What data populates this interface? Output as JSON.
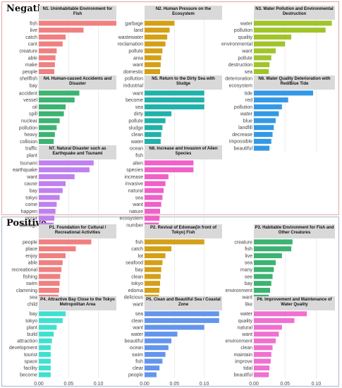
{
  "sections": {
    "negative": "Negative",
    "positive": "Positive"
  },
  "chart_data": [
    {
      "type": "bar",
      "orientation": "horizontal",
      "title": "N1. Uninhabitable Environment for Fish",
      "color": "#f08080",
      "categories": [
        "fish",
        "live",
        "catch",
        "cant",
        "creature",
        "able",
        "make",
        "people",
        "shellfish",
        "bay"
      ],
      "values": [
        0.13,
        0.075,
        0.045,
        0.04,
        0.03,
        0.028,
        0.027,
        0.026,
        0.025,
        0.02
      ],
      "xlim": [
        0,
        0.13
      ],
      "x_ticks": []
    },
    {
      "type": "bar",
      "orientation": "horizontal",
      "title": "N2. Human Pressure on the Ecosystem",
      "color": "#d4a017",
      "categories": [
        "garbage",
        "land",
        "wastewater",
        "reclamation",
        "pollute",
        "area",
        "want",
        "domestic",
        "pollution",
        "industrial"
      ],
      "values": [
        0.05,
        0.042,
        0.038,
        0.035,
        0.03,
        0.028,
        0.027,
        0.026,
        0.025,
        0.024
      ],
      "xlim": [
        0,
        0.13
      ],
      "x_ticks": []
    },
    {
      "type": "bar",
      "orientation": "horizontal",
      "title": "N3. Water Pollution and Environmental Destruction",
      "color": "#a0c42a",
      "categories": [
        "water",
        "pollution",
        "quality",
        "environmental",
        "want",
        "pollute",
        "destruction",
        "sea",
        "deterioration",
        "ecosystem"
      ],
      "values": [
        0.125,
        0.115,
        0.06,
        0.05,
        0.035,
        0.028,
        0.025,
        0.024,
        0.022,
        0.02
      ],
      "xlim": [
        0,
        0.13
      ],
      "x_ticks": []
    },
    {
      "type": "bar",
      "orientation": "horizontal",
      "title": "N4. Human-caused Accidents and Disaster",
      "color": "#3cb371",
      "categories": [
        "accident",
        "vessel",
        "oil",
        "spill",
        "nuclear",
        "pollution",
        "heavy",
        "collision",
        "traffic",
        "plant"
      ],
      "values": [
        0.068,
        0.06,
        0.045,
        0.042,
        0.035,
        0.03,
        0.027,
        0.025,
        0.024,
        0.023
      ],
      "xlim": [
        0,
        0.13
      ],
      "x_ticks": []
    },
    {
      "type": "bar",
      "orientation": "horizontal",
      "title": "N5. Return to the Dirty Sea with Sludge",
      "color": "#20b2aa",
      "categories": [
        "want",
        "become",
        "sea",
        "dirty",
        "pollute",
        "sludge",
        "clean",
        "water",
        "ocean",
        "fish"
      ],
      "values": [
        0.1,
        0.1,
        0.1,
        0.045,
        0.035,
        0.03,
        0.028,
        0.027,
        0.026,
        0.025
      ],
      "xlim": [
        0,
        0.13
      ],
      "x_ticks": []
    },
    {
      "type": "bar",
      "orientation": "horizontal",
      "title": "N6. Water Quality Deterioration with Red/Blue Tide",
      "color": "#3399e6",
      "categories": [
        "tide",
        "red",
        "pollution",
        "water",
        "blue",
        "landfill",
        "decrease",
        "impossible",
        "beautiful"
      ],
      "values": [
        0.095,
        0.055,
        0.045,
        0.04,
        0.035,
        0.032,
        0.03,
        0.028,
        0.025
      ],
      "xlim": [
        0,
        0.13
      ],
      "x_ticks": []
    },
    {
      "type": "bar",
      "orientation": "horizontal",
      "title": "N7. Natural Disaster such as Earthquake and Tsunami",
      "color": "#c080f0",
      "categories": [
        "tsunami",
        "earthquake",
        "want",
        "cause",
        "bay",
        "tokyo",
        "come",
        "happen",
        "occur",
        "damage"
      ],
      "values": [
        0.092,
        0.085,
        0.06,
        0.045,
        0.04,
        0.035,
        0.03,
        0.028,
        0.026,
        0.025
      ],
      "xlim": [
        0,
        0.13
      ],
      "x_ticks": []
    },
    {
      "type": "bar",
      "orientation": "horizontal",
      "title": "N8. Increase and Invasion of Alien Species",
      "color": "#f060c8",
      "categories": [
        "alien",
        "species",
        "increase",
        "invasive",
        "natural",
        "sea",
        "want",
        "nature",
        "ecosystem",
        "number"
      ],
      "values": [
        0.082,
        0.082,
        0.04,
        0.035,
        0.032,
        0.03,
        0.028,
        0.026,
        0.025,
        0.024
      ],
      "xlim": [
        0,
        0.13
      ],
      "x_ticks": []
    },
    {
      "type": "bar",
      "orientation": "horizontal",
      "title": "P1. Foundation for Cultural / Recreational Activities",
      "color": "#f08080",
      "categories": [
        "people",
        "place",
        "enjoy",
        "able",
        "recreational",
        "fishing",
        "swim",
        "clamming",
        "sea",
        "child"
      ],
      "values": [
        0.088,
        0.062,
        0.045,
        0.04,
        0.038,
        0.036,
        0.035,
        0.034,
        0.033,
        0.03
      ],
      "xlim": [
        0,
        0.13
      ],
      "x_ticks": []
    },
    {
      "type": "bar",
      "orientation": "horizontal",
      "title": "P2. Revival of Edomae(in front of Tokyo) Fish",
      "color": "#d4a017",
      "categories": [
        "fish",
        "catch",
        "lot",
        "seafood",
        "bay",
        "clean",
        "tokyo",
        "edoma",
        "delicious",
        "want"
      ],
      "values": [
        0.1,
        0.045,
        0.035,
        0.03,
        0.028,
        0.027,
        0.026,
        0.025,
        0.024,
        0.023
      ],
      "xlim": [
        0,
        0.13
      ],
      "x_ticks": []
    },
    {
      "type": "bar",
      "orientation": "horizontal",
      "title": "P3. Habitable Environment for Fish and Other Creatures",
      "color": "#3cb371",
      "categories": [
        "creature",
        "fish",
        "live",
        "sea",
        "many",
        "see",
        "bay",
        "environment",
        "want",
        "like"
      ],
      "values": [
        0.062,
        0.06,
        0.045,
        0.035,
        0.032,
        0.03,
        0.028,
        0.026,
        0.024,
        0.022
      ],
      "xlim": [
        0,
        0.13
      ],
      "x_ticks": []
    },
    {
      "type": "bar",
      "orientation": "horizontal",
      "title": "P4. Attractive Bay Close to the Tokyo Metropolitan Area",
      "color": "#40e0d0",
      "categories": [
        "bay",
        "tokyo",
        "plant",
        "build",
        "attraction",
        "development",
        "tourist",
        "space",
        "facility",
        "become"
      ],
      "values": [
        0.045,
        0.04,
        0.03,
        0.025,
        0.022,
        0.02,
        0.02,
        0.02,
        0.02,
        0.02
      ],
      "xlim": [
        0,
        0.13
      ],
      "x_ticks": [
        "0.00",
        "0.05",
        "0.10"
      ]
    },
    {
      "type": "bar",
      "orientation": "horizontal",
      "title": "P5. Clean and Beautiful Sea / Coastal Zone",
      "color": "#6495ed",
      "categories": [
        "sea",
        "clean",
        "want",
        "water",
        "beautiful",
        "ocean",
        "swim",
        "fish",
        "clear",
        "people"
      ],
      "values": [
        0.125,
        0.125,
        0.1,
        0.055,
        0.045,
        0.04,
        0.035,
        0.03,
        0.025,
        0.02
      ],
      "xlim": [
        0,
        0.13
      ],
      "x_ticks": [
        "0.00",
        "0.05",
        "0.10"
      ]
    },
    {
      "type": "bar",
      "orientation": "horizontal",
      "title": "P6. Improvement and Maintenance of Water Quality",
      "color": "#f070d0",
      "categories": [
        "water",
        "quality",
        "natural",
        "want",
        "environment",
        "clean",
        "maintain",
        "improve",
        "tidal",
        "beautiful"
      ],
      "values": [
        0.085,
        0.065,
        0.045,
        0.04,
        0.035,
        0.03,
        0.028,
        0.027,
        0.025,
        0.024
      ],
      "xlim": [
        0,
        0.13
      ],
      "x_ticks": [
        "0.00",
        "0.05",
        "0.10"
      ]
    }
  ]
}
